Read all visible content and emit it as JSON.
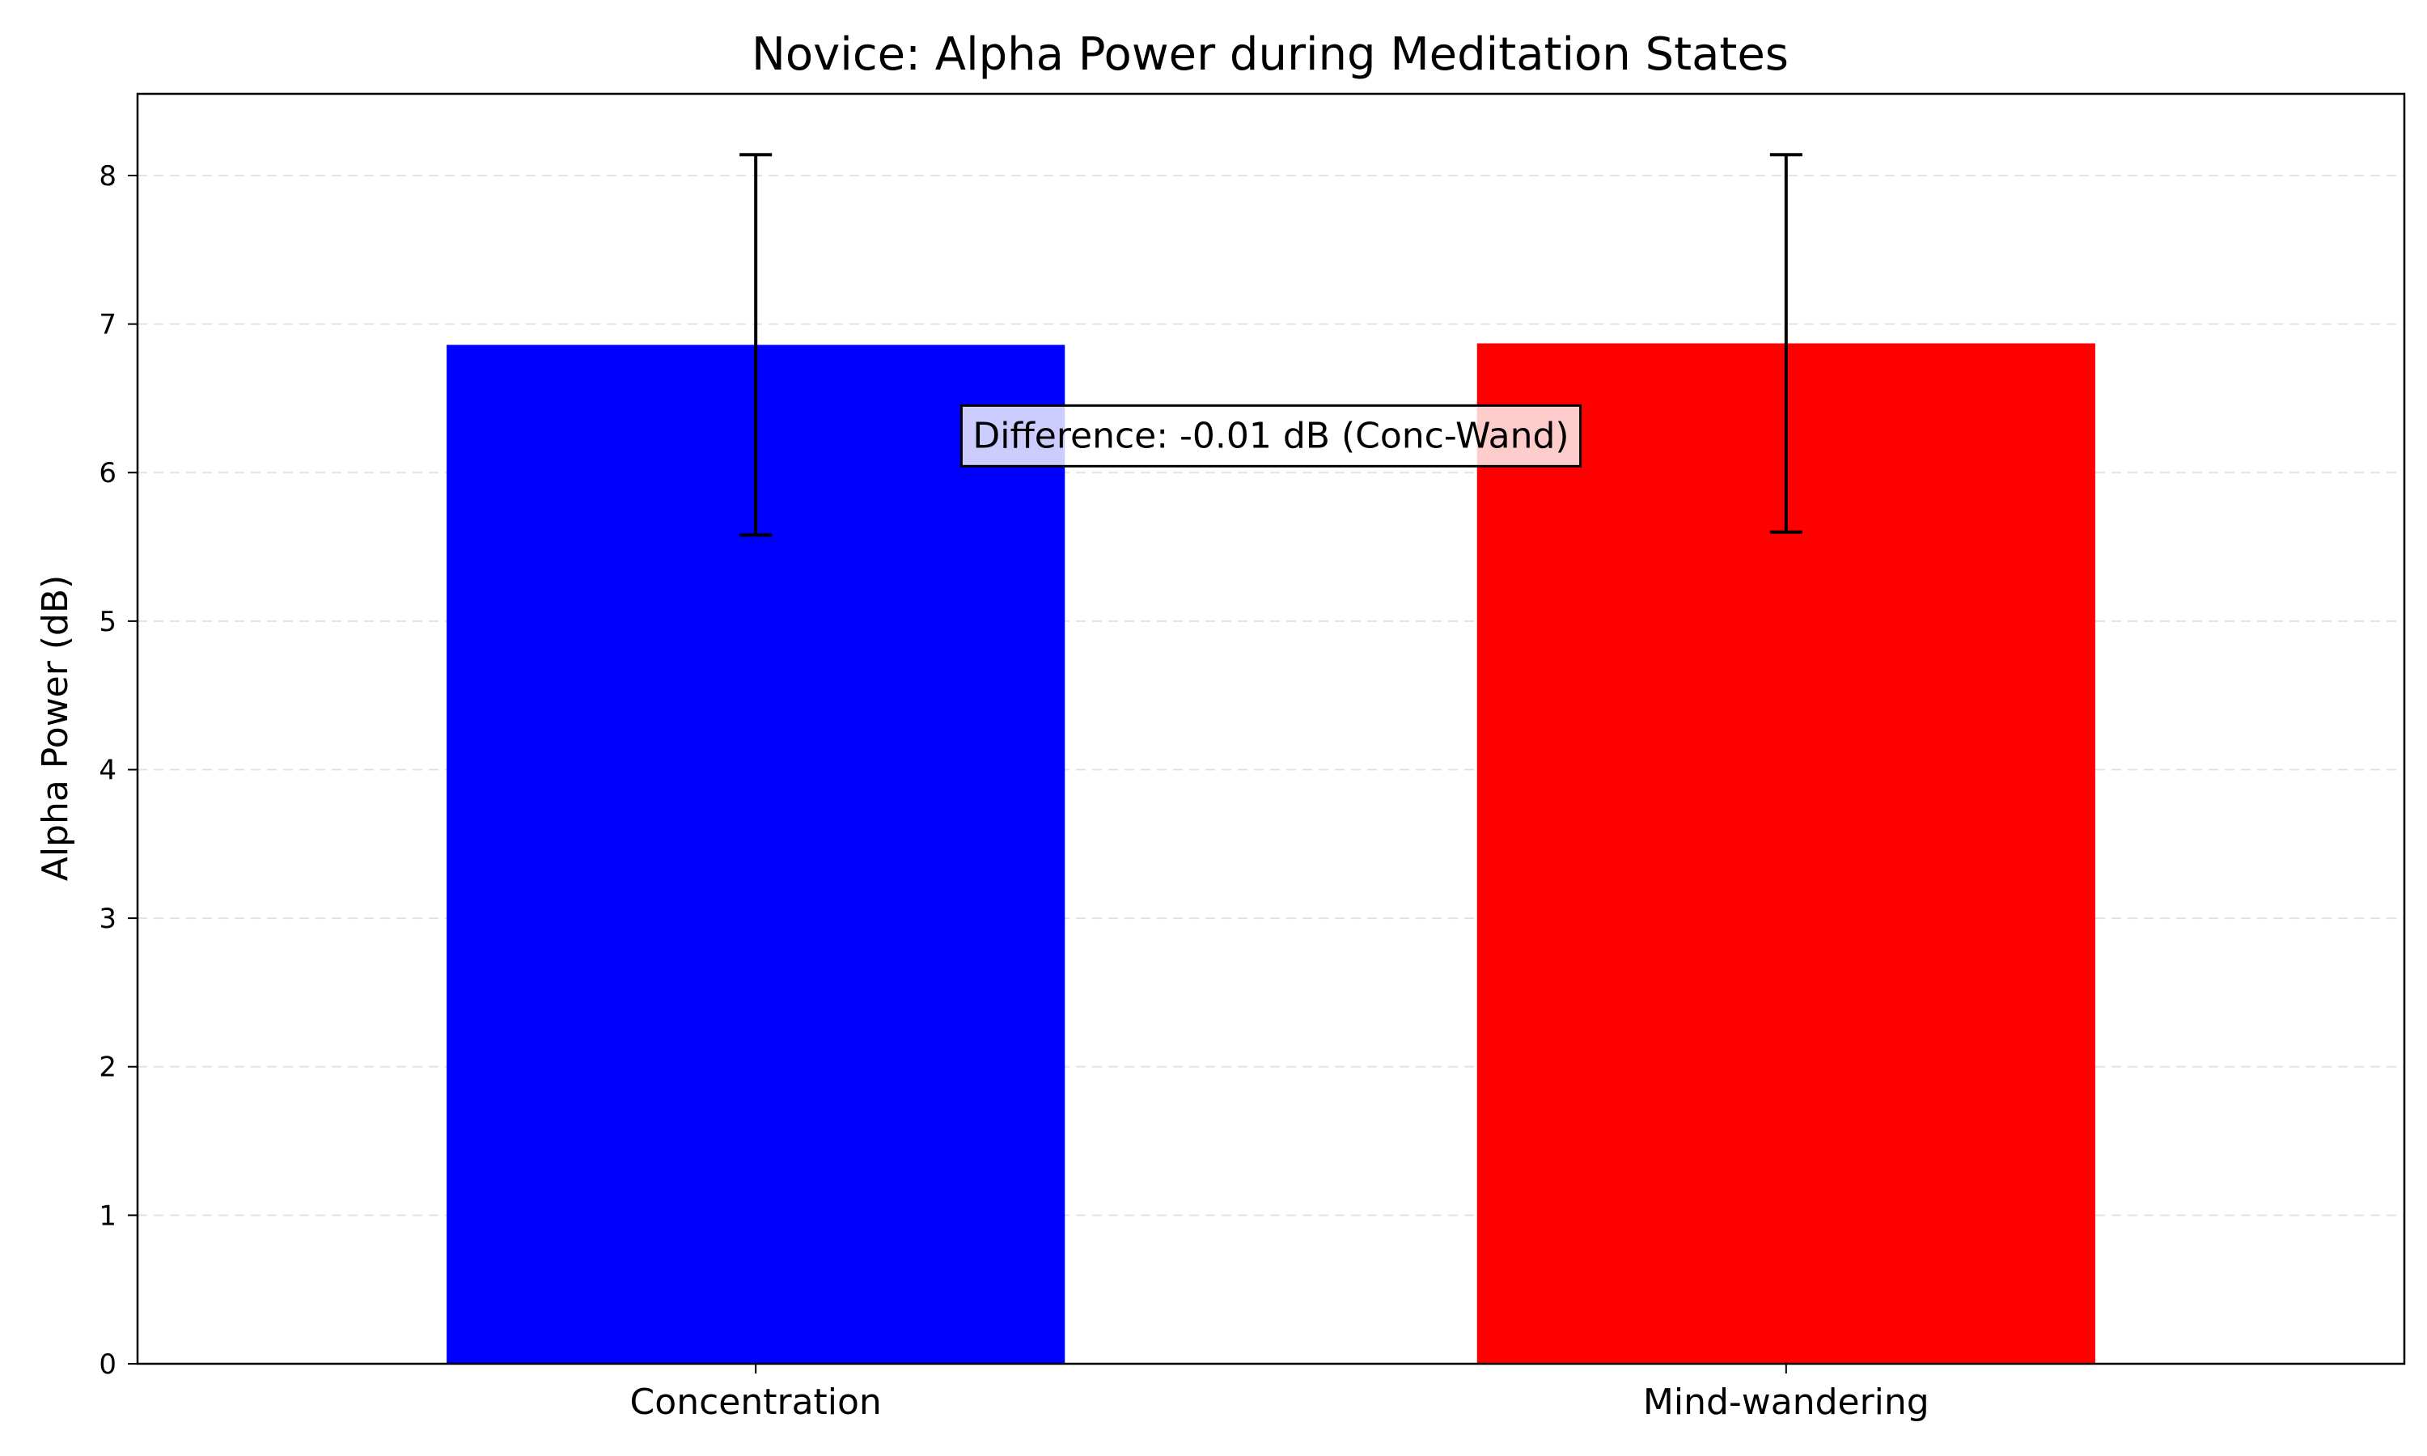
{
  "chart_data": {
    "type": "bar",
    "title": "Novice: Alpha Power during Meditation States",
    "xlabel": "",
    "ylabel": "Alpha Power (dB)",
    "ylim": [
      0,
      8.55
    ],
    "yticks": [
      0,
      1,
      2,
      3,
      4,
      5,
      6,
      7,
      8
    ],
    "grid": true,
    "categories": [
      "Concentration",
      "Mind-wandering"
    ],
    "values": [
      6.86,
      6.87
    ],
    "errors": [
      1.28,
      1.27
    ],
    "colors": [
      "#0000ff",
      "#ff0000"
    ],
    "annotation": "Difference: -0.01 dB (Conc-Wand)"
  }
}
